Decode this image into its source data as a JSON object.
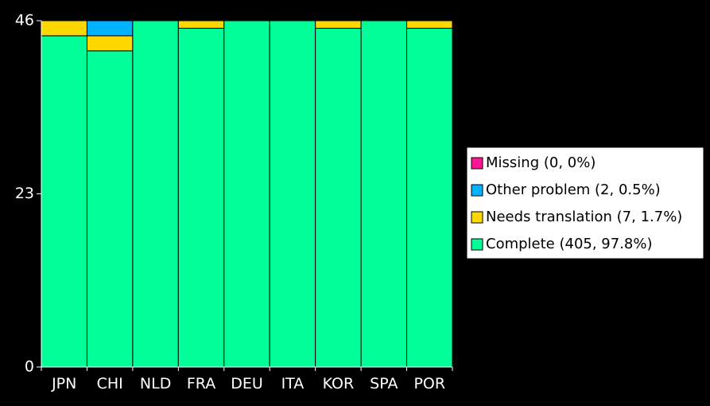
{
  "chart_data": {
    "type": "bar",
    "stacked": true,
    "categories": [
      "JPN",
      "CHI",
      "NLD",
      "FRA",
      "DEU",
      "ITA",
      "KOR",
      "SPA",
      "POR"
    ],
    "series": [
      {
        "name": "Complete",
        "color": "#00ff99",
        "values": [
          44,
          42,
          46,
          45,
          46,
          46,
          45,
          46,
          45
        ]
      },
      {
        "name": "Needs translation",
        "color": "#ffd700",
        "values": [
          2,
          2,
          0,
          1,
          0,
          0,
          1,
          0,
          1
        ]
      },
      {
        "name": "Other problem",
        "color": "#00b2ff",
        "values": [
          0,
          2,
          0,
          0,
          0,
          0,
          0,
          0,
          0
        ]
      },
      {
        "name": "Missing",
        "color": "#ff1493",
        "values": [
          0,
          0,
          0,
          0,
          0,
          0,
          0,
          0,
          0
        ]
      }
    ],
    "ylim": [
      0,
      46
    ],
    "yticks": [
      0,
      23,
      46
    ],
    "title": "",
    "xlabel": "",
    "ylabel": "",
    "legend": {
      "position": "right",
      "entries": [
        {
          "label": "Missing (0, 0%)",
          "color": "#ff1493"
        },
        {
          "label": "Other problem (2, 0.5%)",
          "color": "#00b2ff"
        },
        {
          "label": "Needs translation (7, 1.7%)",
          "color": "#ffd700"
        },
        {
          "label": "Complete (405, 97.8%)",
          "color": "#00ff99"
        }
      ]
    }
  }
}
